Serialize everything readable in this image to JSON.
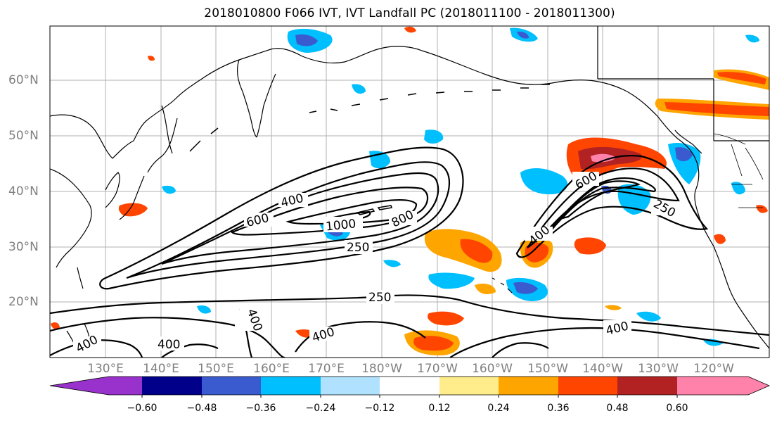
{
  "title": "2018010800 F066 IVT, IVT Landfall PC (2018011100 - 2018011300)",
  "lat_labels": [
    "60°N",
    "50°N",
    "40°N",
    "30°N",
    "20°N"
  ],
  "lon_labels": [
    "130°E",
    "140°E",
    "150°E",
    "160°E",
    "170°E",
    "180°W",
    "170°W",
    "160°W",
    "150°W",
    "140°W",
    "130°W",
    "120°W"
  ],
  "contour_labels": {
    "left_400": "400",
    "left_600": "600",
    "left_1000": "1000",
    "left_800": "800",
    "left_250": "250",
    "mid_250": "250",
    "right_600": "600",
    "right_400": "400",
    "right_250": "250",
    "bottom_400a": "400",
    "bottom_400b": "400",
    "bottom_400c": "400",
    "bottom_400d": "400",
    "bottom_400e": "400"
  },
  "colorbar": {
    "colors": [
      "#9932cc",
      "#00008b",
      "#3a5bcf",
      "#00bfff",
      "#b0e2ff",
      "#ffffff",
      "#ffec8b",
      "#ffa500",
      "#ff4500",
      "#b22222",
      "#ff82ab"
    ],
    "ticks": [
      "−0.60",
      "−0.48",
      "−0.36",
      "−0.24",
      "−0.12",
      "0.12",
      "0.24",
      "0.36",
      "0.48",
      "0.60"
    ]
  },
  "colors": {
    "contour": "#000000",
    "grid": "#b0b0b0",
    "coast": "#000000"
  }
}
